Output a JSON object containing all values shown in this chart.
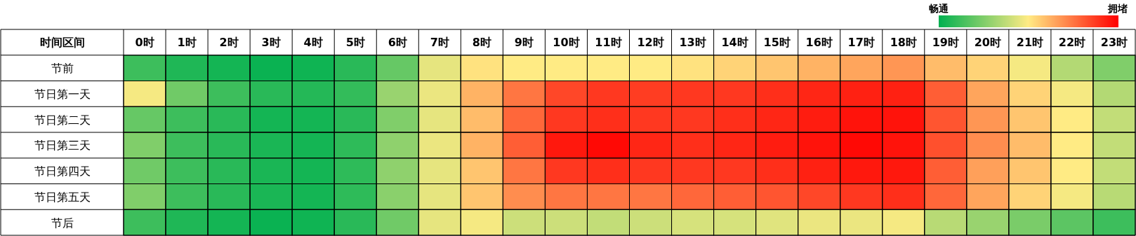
{
  "chart_data": {
    "type": "heatmap",
    "ylabel": "时间区间",
    "categories": [
      "0时",
      "1时",
      "2时",
      "3时",
      "4时",
      "5时",
      "6时",
      "7时",
      "8时",
      "9时",
      "10时",
      "11时",
      "12时",
      "13时",
      "14时",
      "15时",
      "16时",
      "17时",
      "18时",
      "19时",
      "20时",
      "21时",
      "22时",
      "23时"
    ],
    "y_categories": [
      "节前",
      "节日第一天",
      "节日第二天",
      "节日第三天",
      "节日第四天",
      "节日第五天",
      "节后"
    ],
    "cells": [
      [
        0.12,
        0.06,
        0.04,
        0.02,
        0.03,
        0.08,
        0.2,
        0.45,
        0.52,
        0.5,
        0.5,
        0.5,
        0.5,
        0.52,
        0.55,
        0.58,
        0.62,
        0.65,
        0.68,
        0.6,
        0.55,
        0.48,
        0.35,
        0.25
      ],
      [
        0.48,
        0.22,
        0.12,
        0.08,
        0.07,
        0.1,
        0.3,
        0.46,
        0.62,
        0.75,
        0.85,
        0.88,
        0.87,
        0.88,
        0.88,
        0.9,
        0.92,
        0.93,
        0.93,
        0.8,
        0.65,
        0.55,
        0.48,
        0.35
      ],
      [
        0.2,
        0.12,
        0.08,
        0.04,
        0.04,
        0.08,
        0.25,
        0.45,
        0.6,
        0.78,
        0.88,
        0.9,
        0.88,
        0.88,
        0.9,
        0.92,
        0.94,
        0.96,
        0.96,
        0.82,
        0.68,
        0.58,
        0.5,
        0.38
      ],
      [
        0.25,
        0.12,
        0.08,
        0.05,
        0.04,
        0.09,
        0.28,
        0.46,
        0.62,
        0.8,
        0.95,
        0.98,
        0.92,
        0.9,
        0.92,
        0.94,
        0.96,
        0.98,
        0.96,
        0.83,
        0.7,
        0.6,
        0.5,
        0.38
      ],
      [
        0.22,
        0.12,
        0.08,
        0.05,
        0.04,
        0.09,
        0.28,
        0.45,
        0.58,
        0.75,
        0.88,
        0.9,
        0.88,
        0.88,
        0.88,
        0.9,
        0.93,
        0.95,
        0.95,
        0.8,
        0.66,
        0.58,
        0.5,
        0.38
      ],
      [
        0.25,
        0.12,
        0.08,
        0.05,
        0.04,
        0.09,
        0.27,
        0.45,
        0.58,
        0.7,
        0.75,
        0.75,
        0.75,
        0.78,
        0.8,
        0.82,
        0.85,
        0.88,
        0.9,
        0.78,
        0.65,
        0.55,
        0.48,
        0.36
      ],
      [
        0.12,
        0.06,
        0.04,
        0.02,
        0.03,
        0.08,
        0.22,
        0.45,
        0.48,
        0.4,
        0.4,
        0.38,
        0.4,
        0.42,
        0.42,
        0.44,
        0.46,
        0.46,
        0.48,
        0.36,
        0.3,
        0.24,
        0.18,
        0.12
      ]
    ],
    "clim": [
      0,
      1
    ],
    "cticks": [
      {
        "value": 0,
        "label": "畅通"
      },
      {
        "value": 1,
        "label": "拥堵"
      }
    ]
  }
}
